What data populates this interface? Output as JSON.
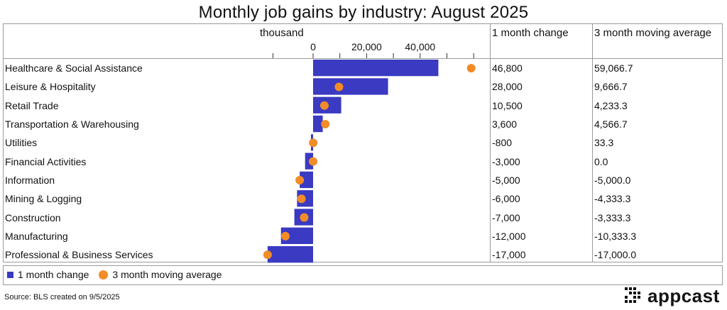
{
  "chart_data": {
    "type": "bar",
    "title": "Monthly job gains by industry: August 2025",
    "unit_label": "thousand",
    "tick_labels": [
      "0",
      "20,000",
      "40,000"
    ],
    "categories": [
      "Healthcare & Social Assistance",
      "Leisure & Hospitality",
      "Retail Trade",
      "Transportation & Warehousing",
      "Utilities",
      "Financial Activities",
      "Information",
      "Mining & Logging",
      "Construction",
      "Manufacturing",
      "Professional & Business Services"
    ],
    "series": [
      {
        "name": "1 month change",
        "values": [
          46800,
          28000,
          10500,
          3600,
          -800,
          -3000,
          -5000,
          -6000,
          -7000,
          -12000,
          -17000
        ],
        "labels": [
          "46,800",
          "28,000",
          "10,500",
          "3,600",
          "-800",
          "-3,000",
          "-5,000",
          "-6,000",
          "-7,000",
          "-12,000",
          "-17,000"
        ],
        "color": "#3a3ac2"
      },
      {
        "name": "3 month moving average",
        "values": [
          59066.7,
          9666.7,
          4233.3,
          4566.7,
          33.3,
          0.0,
          -5000.0,
          -4333.3,
          -3333.3,
          -10333.3,
          -17000.0
        ],
        "labels": [
          "59,066.7",
          "9,666.7",
          "4,233.3",
          "4,566.7",
          "33.3",
          "0.0",
          "-5,000.0",
          "-4,333.3",
          "-3,333.3",
          "-10,333.3",
          "-17,000.0"
        ],
        "color": "#f28c28"
      }
    ],
    "xlim": [
      -20000,
      60000
    ],
    "column_headers": {
      "change": "1 month change",
      "average": "3 month moving average"
    },
    "legend": {
      "change": "1 month change",
      "average": "3 month moving average"
    }
  },
  "footer": {
    "source": "Source: BLS created on 9/5/2025",
    "brand": "appcast"
  }
}
